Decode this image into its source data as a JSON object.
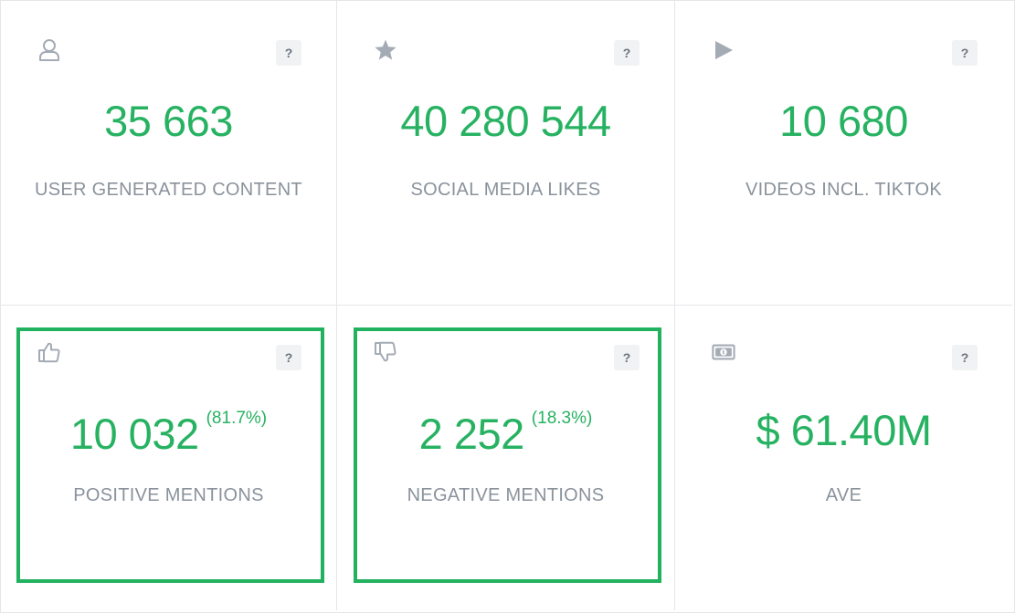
{
  "colors": {
    "accent": "#27b262",
    "highlight": "#22b15e",
    "label": "#8a929c",
    "icon": "#a4abb4"
  },
  "help_label": "?",
  "cards": [
    {
      "icon": "user-icon",
      "value": "35 663",
      "label": "USER GENERATED CONTENT"
    },
    {
      "icon": "star-icon",
      "value": "40 280 544",
      "label": "SOCIAL MEDIA LIKES"
    },
    {
      "icon": "play-icon",
      "value": "10 680",
      "label": "VIDEOS INCL. TIKTOK"
    },
    {
      "icon": "thumbs-up-icon",
      "value": "10 032",
      "percent": "(81.7%)",
      "label": "POSITIVE MENTIONS",
      "highlighted": true
    },
    {
      "icon": "thumbs-down-icon",
      "value": "2 252",
      "percent": "(18.3%)",
      "label": "NEGATIVE MENTIONS",
      "highlighted": true
    },
    {
      "icon": "banknote-icon",
      "value": "$ 61.40M",
      "label": "AVE"
    }
  ]
}
